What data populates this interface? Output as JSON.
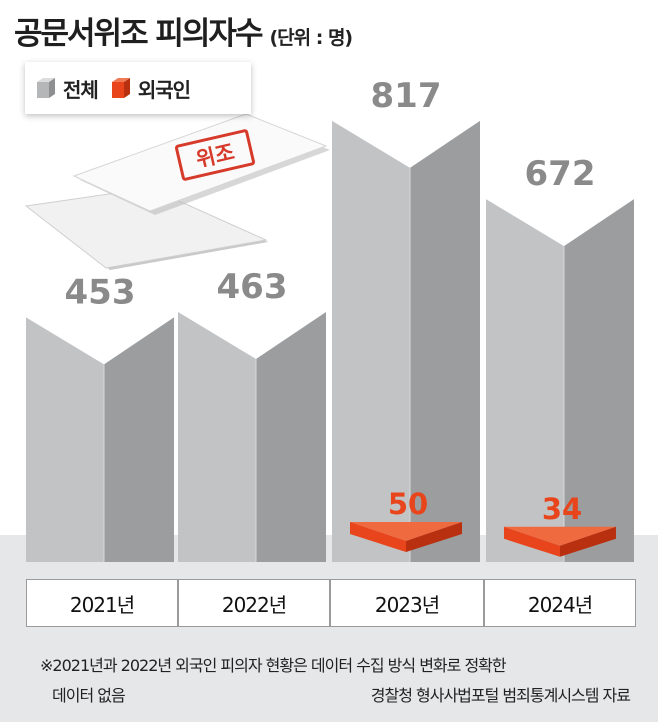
{
  "header": {
    "title": "공문서위조 피의자수",
    "unit": "(단위 : 명)"
  },
  "legend": [
    {
      "label": "전체",
      "color": "#b5b6b8"
    },
    {
      "label": "외국인",
      "color": "#e8451c"
    }
  ],
  "stamp_text": "위조",
  "chart_data": {
    "type": "bar",
    "categories": [
      "2021년",
      "2022년",
      "2023년",
      "2024년"
    ],
    "series": [
      {
        "name": "전체",
        "values": [
          453,
          463,
          817,
          672
        ],
        "color": "#b5b6b8"
      },
      {
        "name": "외국인",
        "values": [
          null,
          null,
          50,
          34
        ],
        "color": "#e8451c"
      }
    ],
    "value_labels": {
      "total": [
        "453",
        "463",
        "817",
        "672"
      ],
      "foreign": [
        "",
        "",
        "50",
        "34"
      ]
    },
    "xlabel": "",
    "ylabel": "",
    "legend_position": "top-left"
  },
  "footnotes": {
    "line1": "※2021년과 2022년 외국인 피의자 현황은  데이터 수집 방식 변화로 정확한",
    "line2a": "데이터 없음",
    "line2b": "경찰청 형사사법포털 범죄통계시스템 자료"
  }
}
